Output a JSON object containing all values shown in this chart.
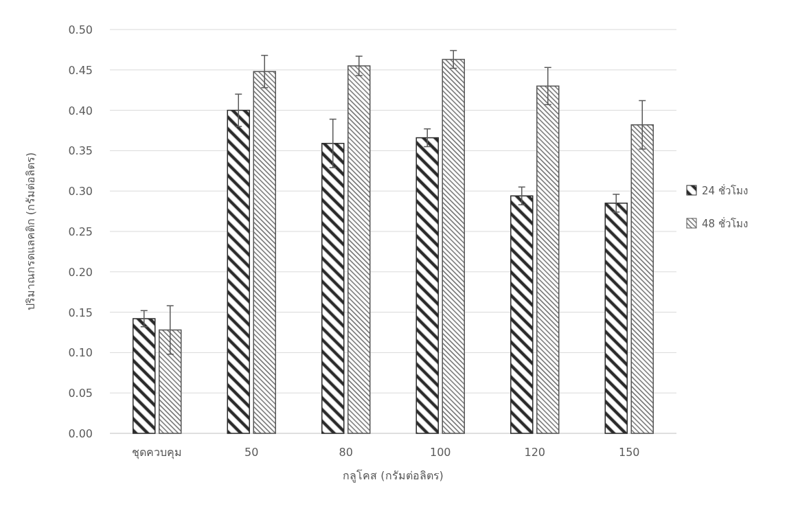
{
  "chart_data": {
    "type": "bar",
    "xlabel": "กลูโคส (กรัมต่อลิตร)",
    "ylabel": "ปริมาณกรดแลคติก (กรัมต่อลิตร)",
    "categories": [
      "ชุดควบคุม",
      "50",
      "80",
      "100",
      "120",
      "150"
    ],
    "series": [
      {
        "name": "24 ชั่วโมง",
        "color": "#2b2b2b",
        "values": [
          0.142,
          0.4,
          0.359,
          0.366,
          0.294,
          0.285
        ],
        "errors": [
          0.01,
          0.02,
          0.03,
          0.011,
          0.011,
          0.011
        ]
      },
      {
        "name": "48 ชั่วโมง",
        "color": "#555555",
        "values": [
          0.128,
          0.448,
          0.455,
          0.463,
          0.43,
          0.382
        ],
        "errors": [
          0.03,
          0.02,
          0.012,
          0.011,
          0.023,
          0.03
        ]
      }
    ],
    "ylim": [
      0,
      0.5
    ],
    "yticks": [
      {
        "value": 0,
        "label": "0.00"
      },
      {
        "value": 0.05,
        "label": "0.05"
      },
      {
        "value": 0.1,
        "label": "0.10"
      },
      {
        "value": 0.15,
        "label": "0.15"
      },
      {
        "value": 0.2,
        "label": "0.20"
      },
      {
        "value": 0.25,
        "label": "0.25"
      },
      {
        "value": 0.3,
        "label": "0.30"
      },
      {
        "value": 0.35,
        "label": "0.35"
      },
      {
        "value": 0.4,
        "label": "0.40"
      },
      {
        "value": 0.45,
        "label": "0.45"
      },
      {
        "value": 0.5,
        "label": "0.50"
      }
    ],
    "grid": "y",
    "legend": "right"
  }
}
